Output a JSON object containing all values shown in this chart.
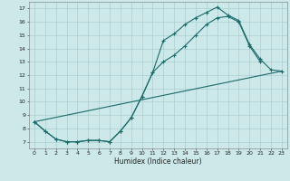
{
  "xlabel": "Humidex (Indice chaleur)",
  "background_color": "#cce8e8",
  "grid_color": "#aacfcf",
  "line_color": "#1a6b6b",
  "xlim": [
    -0.5,
    23.5
  ],
  "ylim": [
    6.5,
    17.5
  ],
  "xticks": [
    0,
    1,
    2,
    3,
    4,
    5,
    6,
    7,
    8,
    9,
    10,
    11,
    12,
    13,
    14,
    15,
    16,
    17,
    18,
    19,
    20,
    21,
    22,
    23
  ],
  "yticks": [
    7,
    8,
    9,
    10,
    11,
    12,
    13,
    14,
    15,
    16,
    17
  ],
  "line1_x": [
    0,
    1,
    2,
    3,
    4,
    5,
    6,
    7,
    8,
    9,
    10,
    11,
    12,
    13,
    14,
    15,
    16,
    17,
    18,
    19,
    20,
    21,
    22,
    23
  ],
  "line1_y": [
    8.5,
    7.8,
    7.2,
    7.0,
    7.0,
    7.1,
    7.1,
    7.0,
    7.8,
    8.8,
    10.4,
    12.2,
    14.6,
    15.1,
    15.8,
    16.3,
    16.7,
    17.1,
    16.5,
    16.1,
    14.3,
    13.2,
    12.4,
    12.3
  ],
  "line2_x": [
    0,
    1,
    2,
    3,
    4,
    5,
    6,
    7,
    8,
    9,
    10,
    11,
    12,
    13,
    14,
    15,
    16,
    17,
    18,
    19,
    20,
    21
  ],
  "line2_y": [
    8.5,
    7.8,
    7.2,
    7.0,
    7.0,
    7.1,
    7.1,
    7.0,
    7.8,
    8.8,
    10.4,
    12.2,
    13.0,
    13.5,
    14.2,
    15.0,
    15.8,
    16.3,
    16.4,
    16.0,
    14.2,
    13.0
  ],
  "line3_x": [
    0,
    23
  ],
  "line3_y": [
    8.5,
    12.3
  ]
}
